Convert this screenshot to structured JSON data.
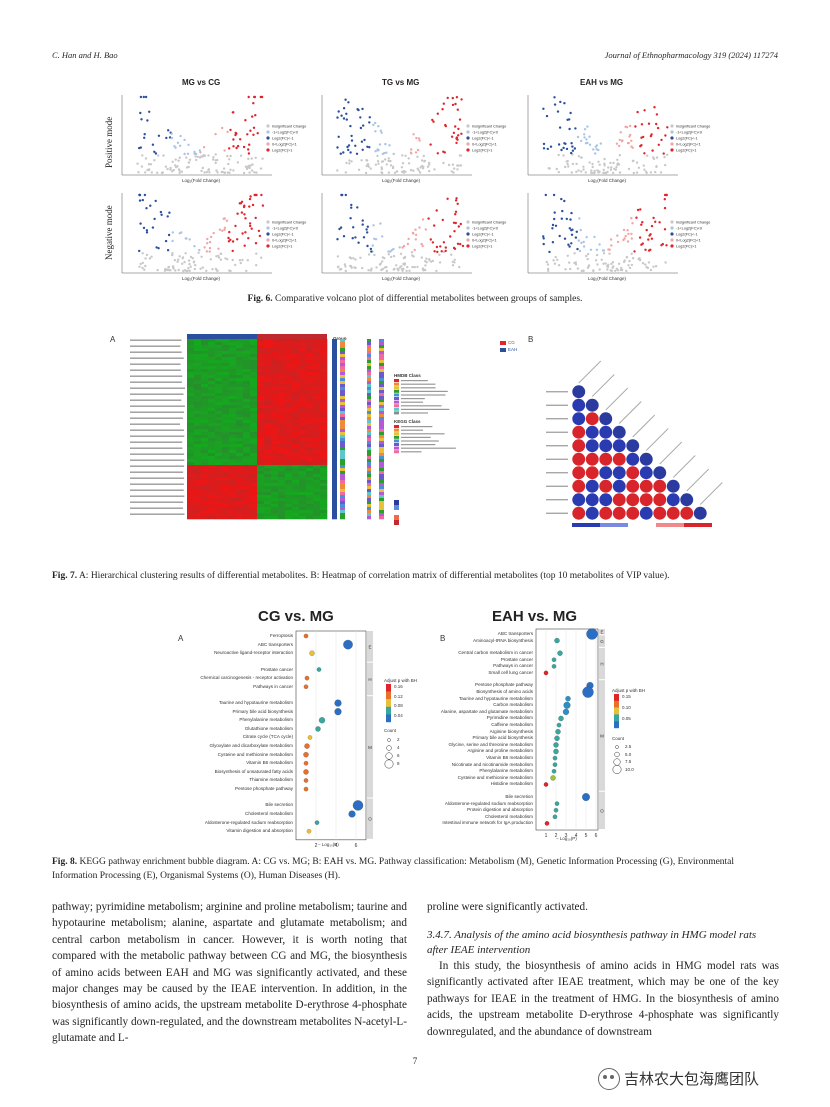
{
  "header": {
    "authors": "C. Han and H. Bao",
    "journal": "Journal of Ethnopharmacology 319 (2024) 117274"
  },
  "fig6": {
    "col_titles": [
      "MG vs CG",
      "TG vs MG",
      "EAH vs MG"
    ],
    "row_labels": [
      "Positive mode",
      "Negative mode"
    ],
    "xlabel": "Log₂(Fold Change)",
    "legend": [
      "Insignificant Change",
      "-1<Log2(FC)<0",
      "Log2(FC)<-1",
      "0<Log2(FC)<1",
      "Log2(FC)>1"
    ],
    "caption_label": "Fig. 6.",
    "caption_text": "Comparative volcano plot of differential metabolites between groups of samples.",
    "colors": {
      "grey": "#c8c8c8",
      "lightblue": "#a9c4e4",
      "blue": "#2a4f9e",
      "pink": "#f2a5a5",
      "red": "#e0242b"
    }
  },
  "fig7": {
    "panel_a": "A",
    "panel_b": "B",
    "group_label": "Group",
    "legend_group": [
      "CG",
      "EAH"
    ],
    "hmdb_title": "HMDB Class",
    "kegg_title": "KEGG Class",
    "caption_label": "Fig. 7.",
    "caption_text": "A: Hierarchical clustering results of differential metabolites. B: Heatmap of correlation matrix of differential metabolites (top 10 metabolites of VIP value)."
  },
  "fig8": {
    "title_a": "CG vs. MG",
    "title_b": "EAH vs. MG",
    "panel_a": "A",
    "panel_b": "B",
    "xlabel": "− Log₁₀(P)",
    "legend_color_title": "Adjust p with BH",
    "legend_count_title": "Count",
    "a_color_ticks": [
      "0.16",
      "0.12",
      "0.08",
      "0.04"
    ],
    "a_count_ticks": [
      "2",
      "4",
      "6",
      "8"
    ],
    "b_color_ticks": [
      "0.15",
      "0.10",
      "0.05"
    ],
    "b_count_ticks": [
      "2.5",
      "5.0",
      "7.5",
      "10.0"
    ],
    "a_xticks": [
      "2",
      "4",
      "6"
    ],
    "b_xticks": [
      "1",
      "2",
      "3",
      "4",
      "5",
      "6"
    ],
    "a_groups": [
      "E",
      "H",
      "M",
      "O"
    ],
    "b_groups": [
      "E",
      "G",
      "H",
      "M",
      "O"
    ],
    "a_pathways": [
      {
        "name": "Ferroptosis",
        "x": 1.0,
        "c": "#e8702a",
        "s": 2
      },
      {
        "name": "ABC transporters",
        "x": 5.2,
        "c": "#2a6fc4",
        "s": 8
      },
      {
        "name": "Neuroactive ligand-receptor interaction",
        "x": 1.6,
        "c": "#e8c03a",
        "s": 3
      },
      {
        "name": "Prostate cancer",
        "x": 2.3,
        "c": "#3aa6a0",
        "s": 2
      },
      {
        "name": "Chemical carcinogenesis - receptor activation",
        "x": 1.1,
        "c": "#e8702a",
        "s": 2
      },
      {
        "name": "Pathways in cancer",
        "x": 1.0,
        "c": "#e8702a",
        "s": 2
      },
      {
        "name": "Taurine and hypotaurine metabolism",
        "x": 4.2,
        "c": "#2a6fc4",
        "s": 5
      },
      {
        "name": "Primary bile acid biosynthesis",
        "x": 4.2,
        "c": "#2a6fc4",
        "s": 5
      },
      {
        "name": "Phenylalanine metabolism",
        "x": 2.6,
        "c": "#3aa6a0",
        "s": 4
      },
      {
        "name": "Glutathione metabolism",
        "x": 2.2,
        "c": "#3aa6a0",
        "s": 3
      },
      {
        "name": "Citrate cycle (TCA cycle)",
        "x": 1.4,
        "c": "#e8c03a",
        "s": 2
      },
      {
        "name": "Glyoxylate and dicarboxylate metabolism",
        "x": 1.1,
        "c": "#e8702a",
        "s": 3
      },
      {
        "name": "Cysteine and methionine metabolism",
        "x": 1.0,
        "c": "#e8702a",
        "s": 3
      },
      {
        "name": "Vitamin B6 metabolism",
        "x": 1.0,
        "c": "#e8702a",
        "s": 2
      },
      {
        "name": "Biosynthesis of unsaturated fatty acids",
        "x": 1.0,
        "c": "#e8702a",
        "s": 3
      },
      {
        "name": "Thiamine metabolism",
        "x": 1.0,
        "c": "#e8702a",
        "s": 2
      },
      {
        "name": "Pentose phosphate pathway",
        "x": 1.0,
        "c": "#e8702a",
        "s": 2
      },
      {
        "name": "Bile secretion",
        "x": 6.2,
        "c": "#2a6fc4",
        "s": 9
      },
      {
        "name": "Cholesterol metabolism",
        "x": 5.6,
        "c": "#2a6fc4",
        "s": 5
      },
      {
        "name": "Aldosterone-regulated sodium reabsorption",
        "x": 2.1,
        "c": "#3aa6a0",
        "s": 2
      },
      {
        "name": "Vitamin digestion and absorption",
        "x": 1.3,
        "c": "#e8c03a",
        "s": 2
      }
    ],
    "b_pathways": [
      {
        "name": "ABC transporters",
        "x": 5.6,
        "c": "#2a6fc4",
        "s": 10
      },
      {
        "name": "Aminoacyl-tRNA biosynthesis",
        "x": 2.1,
        "c": "#3aa6a0",
        "s": 3
      },
      {
        "name": "Central carbon metabolism in cancer",
        "x": 2.4,
        "c": "#3aa6a0",
        "s": 3
      },
      {
        "name": "Prostate cancer",
        "x": 1.8,
        "c": "#3aa6a0",
        "s": 2
      },
      {
        "name": "Pathways in cancer",
        "x": 1.8,
        "c": "#3aa6a0",
        "s": 2
      },
      {
        "name": "Small cell lung cancer",
        "x": 1.0,
        "c": "#e0242b",
        "s": 2
      },
      {
        "name": "Pentose phosphate pathway",
        "x": 5.4,
        "c": "#2a6fc4",
        "s": 5
      },
      {
        "name": "Biosynthesis of amino acids",
        "x": 5.2,
        "c": "#2a6fc4",
        "s": 10
      },
      {
        "name": "Taurine and hypotaurine metabolism",
        "x": 3.2,
        "c": "#2a8fc4",
        "s": 3
      },
      {
        "name": "Carbon metabolism",
        "x": 3.1,
        "c": "#2a8fc4",
        "s": 5
      },
      {
        "name": "Alanine, aspartate and glutamate metabolism",
        "x": 3.0,
        "c": "#2a8fc4",
        "s": 4
      },
      {
        "name": "Pyrimidine metabolism",
        "x": 2.5,
        "c": "#3aa6a0",
        "s": 3
      },
      {
        "name": "Caffeine metabolism",
        "x": 2.3,
        "c": "#3aa6a0",
        "s": 2
      },
      {
        "name": "Arginine biosynthesis",
        "x": 2.2,
        "c": "#3aa6a0",
        "s": 3
      },
      {
        "name": "Primary bile acid biosynthesis",
        "x": 2.1,
        "c": "#3aa6a0",
        "s": 3
      },
      {
        "name": "Glycine, serine and threonine metabolism",
        "x": 2.0,
        "c": "#3aa6a0",
        "s": 3
      },
      {
        "name": "Arginine and proline metabolism",
        "x": 2.0,
        "c": "#3aa6a0",
        "s": 3
      },
      {
        "name": "Vitamin B6 metabolism",
        "x": 1.9,
        "c": "#3aa6a0",
        "s": 2
      },
      {
        "name": "Nicotinate and nicotinamide metabolism",
        "x": 1.9,
        "c": "#3aa6a0",
        "s": 2
      },
      {
        "name": "Phenylalanine metabolism",
        "x": 1.8,
        "c": "#3aa6a0",
        "s": 2
      },
      {
        "name": "Cysteine and methionine metabolism",
        "x": 1.7,
        "c": "#9cc23a",
        "s": 3
      },
      {
        "name": "Histidine metabolism",
        "x": 1.0,
        "c": "#e0242b",
        "s": 2
      },
      {
        "name": "Bile secretion",
        "x": 5.0,
        "c": "#2a6fc4",
        "s": 6
      },
      {
        "name": "Aldosterone-regulated sodium reabsorption",
        "x": 2.1,
        "c": "#3aa6a0",
        "s": 2
      },
      {
        "name": "Protein digestion and absorption",
        "x": 2.0,
        "c": "#3aa6a0",
        "s": 2
      },
      {
        "name": "Cholesterol metabolism",
        "x": 1.9,
        "c": "#3aa6a0",
        "s": 2
      },
      {
        "name": "Intestinal immune network for IgA production",
        "x": 1.1,
        "c": "#e0242b",
        "s": 2
      }
    ],
    "caption_label": "Fig. 8.",
    "caption_text": "KEGG pathway enrichment bubble diagram. A: CG vs. MG; B: EAH vs. MG. Pathway classification: Metabolism (M), Genetic Information Processing (G), Environmental Information Processing (E), Organismal Systems (O), Human Diseases (H)."
  },
  "body": {
    "left_para": "pathway; pyrimidine metabolism; arginine and proline metabolism; taurine and hypotaurine metabolism; alanine, aspartate and glutamate metabolism; and central carbon metabolism in cancer. However, it is worth noting that compared with the metabolic pathway between CG and MG, the biosynthesis of amino acids between EAH and MG was significantly activated, and these major changes may be caused by the IEAE intervention. In addition, in the biosynthesis of amino acids, the upstream metabolite D-erythrose 4-phosphate was significantly down-regulated, and the downstream metabolites N-acetyl-L-glutamate and L-",
    "right_para1": "proline were significantly activated.",
    "section_title": "3.4.7. Analysis of the amino acid biosynthesis pathway in HMG model rats after IEAE intervention",
    "right_para2": "In this study, the biosynthesis of amino acids in HMG model rats was significantly activated after IEAE treatment, which may be one of the key pathways for IEAE in the treatment of HMG. In the biosynthesis of amino acids, the upstream metabolite D-erythrose 4-phosphate was significantly downregulated, and the abundance of downstream"
  },
  "page_number": "7",
  "watermark": "吉林农大包海鹰团队"
}
